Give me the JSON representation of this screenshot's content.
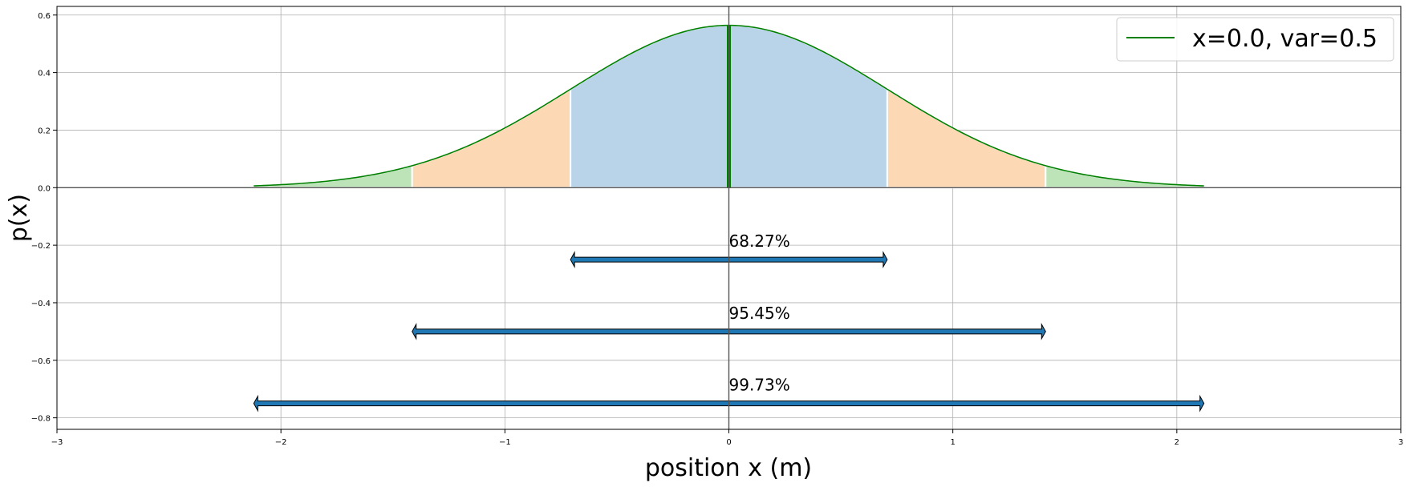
{
  "chart_data": {
    "type": "line",
    "title": "",
    "xlabel": "position x (m)",
    "ylabel": "p(x)",
    "xlim": [
      -3,
      3
    ],
    "ylim": [
      -0.84,
      0.63
    ],
    "grid": true,
    "legend_position": "top-right",
    "xticks": [
      -3,
      -2,
      -1,
      0,
      1,
      2,
      3
    ],
    "xtick_labels": [
      "−3",
      "−2",
      "−1",
      "0",
      "1",
      "2",
      "3"
    ],
    "yticks": [
      -0.8,
      -0.6,
      -0.4,
      -0.2,
      0.0,
      0.2,
      0.4,
      0.6
    ],
    "ytick_labels": [
      "−0.8",
      "−0.6",
      "−0.4",
      "−0.2",
      "0.0",
      "0.2",
      "0.4",
      "0.6"
    ],
    "series": [
      {
        "name": "x=0.0, var=0.5",
        "color": "#008000",
        "mean": 0.0,
        "variance": 0.5,
        "x_range": [
          -2.1213,
          2.1213
        ]
      }
    ],
    "mean_line": {
      "x": 0.0,
      "color": "#008000"
    },
    "bands": [
      {
        "label": "68.27%",
        "from": -0.7071,
        "to": 0.7071,
        "fill": "#b9d4e8",
        "arrow_y": -0.25
      },
      {
        "label": "95.45%",
        "from": -1.4142,
        "to": 1.4142,
        "fill": "#fdd8b5",
        "arrow_y": -0.5
      },
      {
        "label": "99.73%",
        "from": -2.1213,
        "to": 2.1213,
        "fill": "#bde3b8",
        "arrow_y": -0.75
      }
    ],
    "arrow_color": "#1f77b4"
  }
}
